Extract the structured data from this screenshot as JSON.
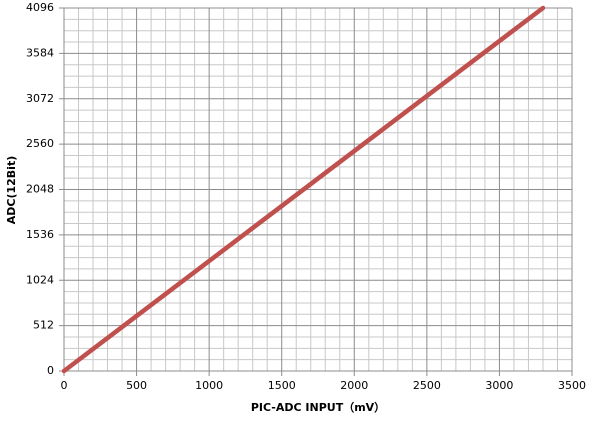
{
  "chart_data": {
    "type": "line",
    "x_label": "PIC-ADC INPUT（mV）",
    "y_label": "ADC(12Bit)",
    "x": [
      0,
      3300
    ],
    "series": [
      {
        "values": [
          0,
          4096
        ],
        "color": "#c0504d"
      }
    ],
    "xlim": [
      0,
      3500
    ],
    "xticks": [
      0,
      500,
      1000,
      1500,
      2000,
      2500,
      3000,
      3500
    ],
    "ylim": [
      0,
      4096
    ],
    "yticks": [
      0,
      512,
      1024,
      1536,
      2048,
      2560,
      3072,
      3584,
      4096
    ],
    "grid": true
  }
}
